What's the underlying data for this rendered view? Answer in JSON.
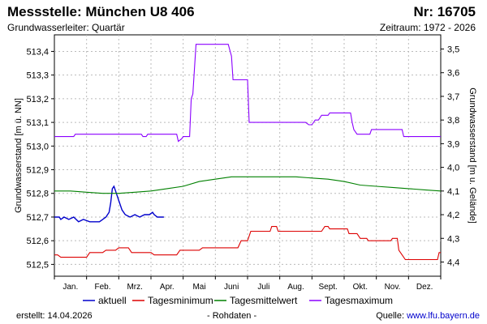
{
  "header": {
    "title": "Messstelle: München U8 406",
    "number": "Nr: 16705",
    "aquifer": "Grundwasserleiter: Quartär",
    "period": "Zeitraum: 1972 - 2026"
  },
  "footer": {
    "created": "erstellt:  14.04.2026",
    "raw_note": "- Rohdaten -",
    "source_label": "Quelle: ",
    "source_link": "www.lfu.bayern.de"
  },
  "chart_data": {
    "type": "line",
    "title": "",
    "xlabel": "",
    "ylabel": "Grundwasserstand [m ü. NN]",
    "ylabel_right": "Grundwasserstand [m u. Gelände]",
    "x_domain": [
      0,
      12
    ],
    "ylim": [
      512.45,
      513.47
    ],
    "y_ticks": [
      "512,5",
      "512,6",
      "512,7",
      "512,8",
      "512,9",
      "513,0",
      "513,1",
      "513,2",
      "513,3",
      "513,4"
    ],
    "y_tick_values": [
      512.5,
      512.6,
      512.7,
      512.8,
      512.9,
      513.0,
      513.1,
      513.2,
      513.3,
      513.4
    ],
    "y2_ticks": [
      "3,5",
      "3,6",
      "3,7",
      "3,8",
      "3,9",
      "4,0",
      "4,1",
      "4,2",
      "4,3",
      "4,4"
    ],
    "y2_tick_values": [
      3.5,
      3.6,
      3.7,
      3.8,
      3.9,
      4.0,
      4.1,
      4.2,
      4.3,
      4.4
    ],
    "y2_offset": 516.91,
    "x_tick_labels": [
      "Jan.",
      "Feb.",
      "Mrz.",
      "Apr.",
      "Mai",
      "Juni",
      "Juli",
      "Aug.",
      "Sept.",
      "Okt.",
      "Nov.",
      "Dez."
    ],
    "grid": true,
    "legend_position": "bottom",
    "series": [
      {
        "name": "aktuell",
        "color": "#0000cc",
        "points": [
          [
            0.0,
            512.7
          ],
          [
            0.15,
            512.7
          ],
          [
            0.2,
            512.69
          ],
          [
            0.3,
            512.7
          ],
          [
            0.45,
            512.69
          ],
          [
            0.6,
            512.7
          ],
          [
            0.75,
            512.68
          ],
          [
            0.9,
            512.69
          ],
          [
            1.1,
            512.68
          ],
          [
            1.3,
            512.68
          ],
          [
            1.4,
            512.68
          ],
          [
            1.5,
            512.69
          ],
          [
            1.6,
            512.7
          ],
          [
            1.7,
            512.72
          ],
          [
            1.75,
            512.76
          ],
          [
            1.8,
            512.82
          ],
          [
            1.85,
            512.83
          ],
          [
            1.9,
            512.81
          ],
          [
            2.0,
            512.77
          ],
          [
            2.1,
            512.73
          ],
          [
            2.2,
            512.71
          ],
          [
            2.35,
            512.7
          ],
          [
            2.5,
            512.71
          ],
          [
            2.65,
            512.7
          ],
          [
            2.8,
            512.71
          ],
          [
            2.95,
            512.71
          ],
          [
            3.05,
            512.72
          ],
          [
            3.1,
            512.71
          ],
          [
            3.2,
            512.7
          ],
          [
            3.4,
            512.7
          ]
        ]
      },
      {
        "name": "Tagesminimum",
        "color": "#dd0000",
        "points": [
          [
            0.0,
            512.54
          ],
          [
            0.1,
            512.54
          ],
          [
            0.2,
            512.53
          ],
          [
            1.0,
            512.53
          ],
          [
            1.1,
            512.55
          ],
          [
            1.5,
            512.55
          ],
          [
            1.6,
            512.56
          ],
          [
            1.9,
            512.56
          ],
          [
            2.0,
            512.57
          ],
          [
            2.3,
            512.57
          ],
          [
            2.4,
            512.55
          ],
          [
            3.0,
            512.55
          ],
          [
            3.1,
            512.54
          ],
          [
            3.8,
            512.54
          ],
          [
            3.9,
            512.56
          ],
          [
            4.5,
            512.56
          ],
          [
            4.6,
            512.57
          ],
          [
            5.7,
            512.57
          ],
          [
            5.8,
            512.6
          ],
          [
            6.0,
            512.6
          ],
          [
            6.1,
            512.64
          ],
          [
            6.7,
            512.64
          ],
          [
            6.75,
            512.66
          ],
          [
            6.9,
            512.66
          ],
          [
            6.95,
            512.64
          ],
          [
            8.3,
            512.64
          ],
          [
            8.4,
            512.66
          ],
          [
            8.5,
            512.66
          ],
          [
            8.55,
            512.65
          ],
          [
            9.1,
            512.65
          ],
          [
            9.15,
            512.63
          ],
          [
            9.4,
            512.63
          ],
          [
            9.5,
            512.61
          ],
          [
            9.7,
            512.61
          ],
          [
            9.75,
            512.6
          ],
          [
            10.45,
            512.6
          ],
          [
            10.5,
            512.61
          ],
          [
            10.65,
            512.61
          ],
          [
            10.7,
            512.56
          ],
          [
            10.8,
            512.54
          ],
          [
            10.9,
            512.52
          ],
          [
            11.9,
            512.52
          ],
          [
            11.95,
            512.55
          ],
          [
            12.0,
            512.55
          ]
        ]
      },
      {
        "name": "Tagesmittelwert",
        "color": "#008000",
        "points": [
          [
            0.0,
            512.81
          ],
          [
            0.5,
            512.81
          ],
          [
            1.0,
            512.805
          ],
          [
            1.5,
            512.8
          ],
          [
            2.0,
            512.8
          ],
          [
            2.5,
            512.805
          ],
          [
            3.0,
            512.81
          ],
          [
            3.5,
            512.82
          ],
          [
            4.0,
            512.83
          ],
          [
            4.5,
            512.85
          ],
          [
            5.0,
            512.86
          ],
          [
            5.5,
            512.87
          ],
          [
            6.0,
            512.87
          ],
          [
            6.5,
            512.87
          ],
          [
            7.0,
            512.87
          ],
          [
            7.5,
            512.87
          ],
          [
            8.0,
            512.865
          ],
          [
            8.5,
            512.86
          ],
          [
            9.0,
            512.85
          ],
          [
            9.5,
            512.835
          ],
          [
            10.0,
            512.83
          ],
          [
            10.5,
            512.825
          ],
          [
            11.0,
            512.82
          ],
          [
            11.5,
            512.815
          ],
          [
            12.0,
            512.81
          ]
        ]
      },
      {
        "name": "Tagesmaximum",
        "color": "#8b00ff",
        "points": [
          [
            0.0,
            513.04
          ],
          [
            0.6,
            513.04
          ],
          [
            0.65,
            513.05
          ],
          [
            2.7,
            513.05
          ],
          [
            2.75,
            513.04
          ],
          [
            2.85,
            513.04
          ],
          [
            2.9,
            513.05
          ],
          [
            3.8,
            513.05
          ],
          [
            3.85,
            513.02
          ],
          [
            3.95,
            513.03
          ],
          [
            4.0,
            513.04
          ],
          [
            4.2,
            513.04
          ],
          [
            4.25,
            513.2
          ],
          [
            4.3,
            513.22
          ],
          [
            4.4,
            513.43
          ],
          [
            5.4,
            513.43
          ],
          [
            5.5,
            513.38
          ],
          [
            5.55,
            513.28
          ],
          [
            6.0,
            513.28
          ],
          [
            6.05,
            513.1
          ],
          [
            7.8,
            513.1
          ],
          [
            7.9,
            513.09
          ],
          [
            8.0,
            513.09
          ],
          [
            8.1,
            513.11
          ],
          [
            8.2,
            513.11
          ],
          [
            8.3,
            513.13
          ],
          [
            8.5,
            513.13
          ],
          [
            8.55,
            513.14
          ],
          [
            9.2,
            513.14
          ],
          [
            9.25,
            513.1
          ],
          [
            9.3,
            513.07
          ],
          [
            9.4,
            513.05
          ],
          [
            9.8,
            513.05
          ],
          [
            9.85,
            513.07
          ],
          [
            10.8,
            513.07
          ],
          [
            10.85,
            513.04
          ],
          [
            12.0,
            513.04
          ]
        ]
      }
    ]
  }
}
